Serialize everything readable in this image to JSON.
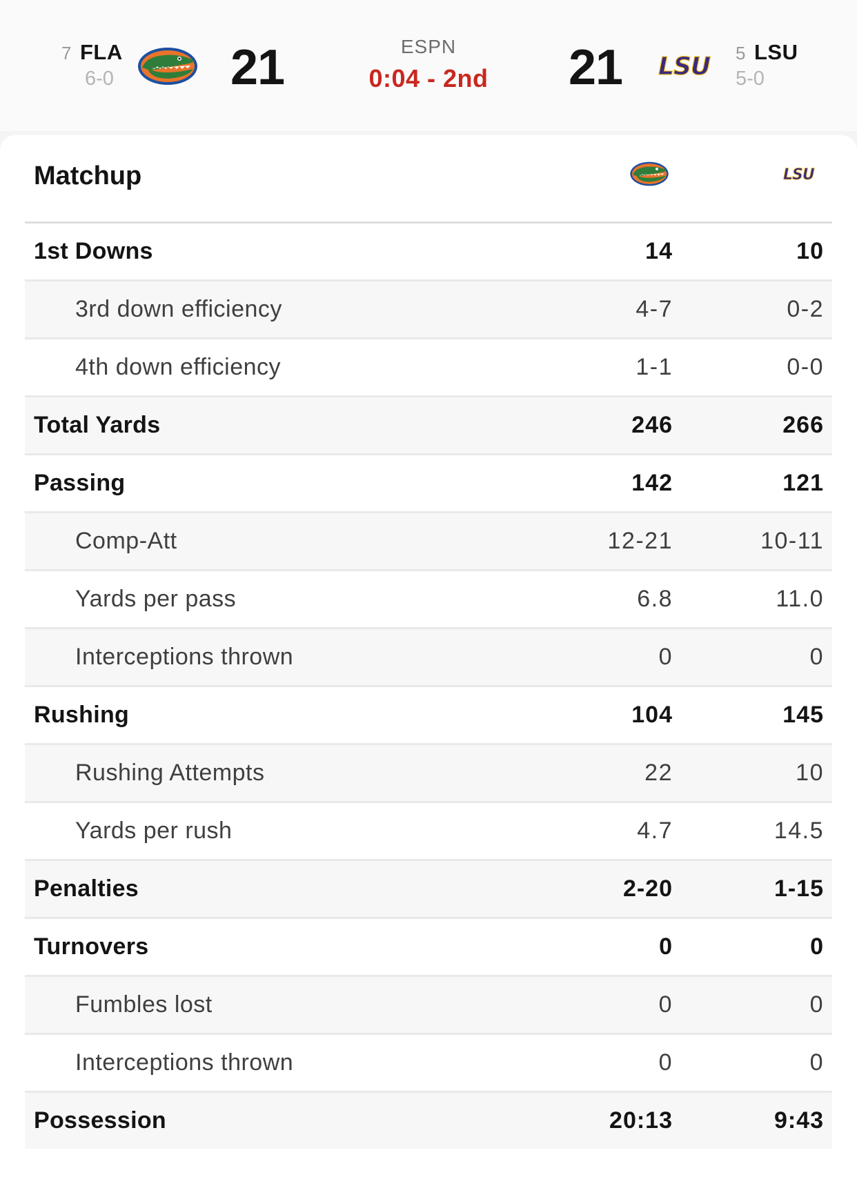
{
  "scoreboard": {
    "network": "ESPN",
    "clock": "0:04 - 2nd",
    "away": {
      "rank": "7",
      "abbr": "FLA",
      "record": "6-0",
      "score": "21",
      "logo_icon": "gators-logo-icon"
    },
    "home": {
      "rank": "5",
      "abbr": "LSU",
      "record": "5-0",
      "score": "21",
      "logo_icon": "lsu-logo-icon"
    }
  },
  "matchup": {
    "title": "Matchup",
    "rows": [
      {
        "label": "1st Downs",
        "away": "14",
        "home": "10",
        "type": "main"
      },
      {
        "label": "3rd down efficiency",
        "away": "4-7",
        "home": "0-2",
        "type": "sub"
      },
      {
        "label": "4th down efficiency",
        "away": "1-1",
        "home": "0-0",
        "type": "sub"
      },
      {
        "label": "Total Yards",
        "away": "246",
        "home": "266",
        "type": "main"
      },
      {
        "label": "Passing",
        "away": "142",
        "home": "121",
        "type": "main"
      },
      {
        "label": "Comp-Att",
        "away": "12-21",
        "home": "10-11",
        "type": "sub"
      },
      {
        "label": "Yards per pass",
        "away": "6.8",
        "home": "11.0",
        "type": "sub"
      },
      {
        "label": "Interceptions thrown",
        "away": "0",
        "home": "0",
        "type": "sub"
      },
      {
        "label": "Rushing",
        "away": "104",
        "home": "145",
        "type": "main"
      },
      {
        "label": "Rushing Attempts",
        "away": "22",
        "home": "10",
        "type": "sub"
      },
      {
        "label": "Yards per rush",
        "away": "4.7",
        "home": "14.5",
        "type": "sub"
      },
      {
        "label": "Penalties",
        "away": "2-20",
        "home": "1-15",
        "type": "main"
      },
      {
        "label": "Turnovers",
        "away": "0",
        "home": "0",
        "type": "main"
      },
      {
        "label": "Fumbles lost",
        "away": "0",
        "home": "0",
        "type": "sub"
      },
      {
        "label": "Interceptions thrown",
        "away": "0",
        "home": "0",
        "type": "sub"
      },
      {
        "label": "Possession",
        "away": "20:13",
        "home": "9:43",
        "type": "main"
      }
    ]
  },
  "colors": {
    "clock": "#c8281f",
    "gator_green": "#2f7d3a",
    "gator_blue": "#1c4fa0",
    "gator_orange": "#e8742a",
    "lsu_purple": "#3b2a7a",
    "lsu_gold": "#f2c22c"
  }
}
